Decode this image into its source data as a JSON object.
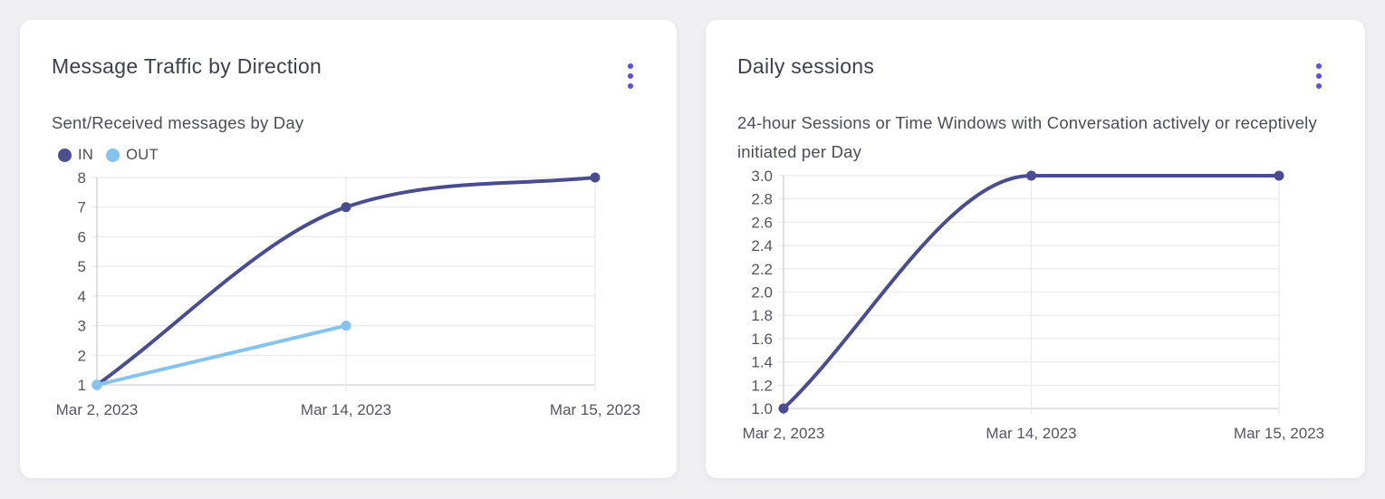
{
  "page": {
    "background_color": "#f0f0f3"
  },
  "cards": [
    {
      "title": "Message Traffic by Direction",
      "subtitle": "Sent/Received messages by Day",
      "menu": {
        "icon": "kebab-menu-icon",
        "color": "#584ee2"
      },
      "legend": [
        {
          "label": "IN",
          "color": "#4c5091"
        },
        {
          "label": "OUT",
          "color": "#84c3ef"
        }
      ]
    },
    {
      "title": "Daily sessions",
      "subtitle": "24-hour Sessions or Time Windows with Conversation actively or receptively initiated per Day",
      "menu": {
        "icon": "kebab-menu-icon",
        "color": "#584ee2"
      },
      "legend": []
    }
  ],
  "chart_data": [
    {
      "type": "line",
      "title": "Message Traffic by Direction",
      "subtitle": "Sent/Received messages by Day",
      "categories": [
        "Mar 2, 2023",
        "Mar 14, 2023",
        "Mar 15, 2023"
      ],
      "series": [
        {
          "name": "IN",
          "color": "#494d90",
          "values": [
            1,
            7,
            8
          ]
        },
        {
          "name": "OUT",
          "color": "#84c3ef",
          "values": [
            1,
            3,
            null
          ]
        }
      ],
      "xlabel": "",
      "ylabel": "",
      "ylim": [
        1,
        8
      ],
      "ytick_step": 1,
      "ytick_decimals": 0,
      "yticks": [
        1,
        2,
        3,
        4,
        5,
        6,
        7,
        8
      ],
      "grid": true,
      "curve": "monotone",
      "legend_position": "top-left"
    },
    {
      "type": "line",
      "title": "Daily sessions",
      "subtitle": "24-hour Sessions or Time Windows with Conversation actively or receptively initiated per Day",
      "categories": [
        "Mar 2, 2023",
        "Mar 14, 2023",
        "Mar 15, 2023"
      ],
      "series": [
        {
          "name": "Daily sessions",
          "color": "#494d90",
          "values": [
            1.0,
            3.0,
            3.0
          ]
        }
      ],
      "xlabel": "",
      "ylabel": "",
      "ylim": [
        1.0,
        3.0
      ],
      "ytick_step": 0.2,
      "ytick_decimals": 1,
      "yticks": [
        1.0,
        1.2,
        1.4,
        1.6,
        1.8,
        2.0,
        2.2,
        2.4,
        2.6,
        2.8,
        3.0
      ],
      "grid": true,
      "curve": "monotone",
      "legend_position": "none"
    }
  ],
  "colors": {
    "grid_line": "#e9e9ee",
    "axis_line": "#c9c9d2",
    "tick_text": "#55555f"
  }
}
